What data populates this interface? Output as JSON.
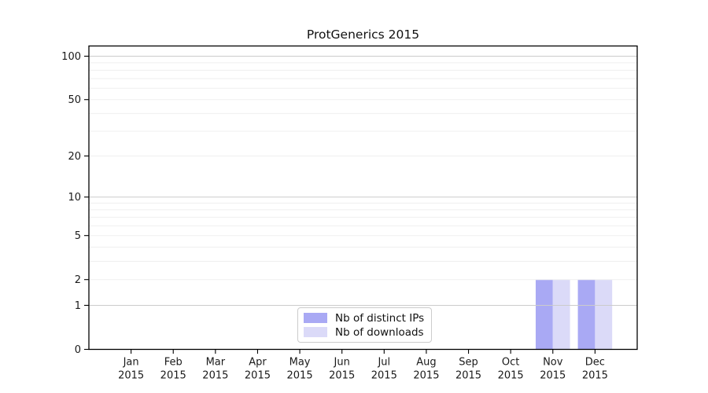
{
  "chart_data": {
    "type": "bar",
    "title": "ProtGenerics 2015",
    "categories": [
      "Jan",
      "Feb",
      "Mar",
      "Apr",
      "May",
      "Jun",
      "Jul",
      "Aug",
      "Sep",
      "Oct",
      "Nov",
      "Dec"
    ],
    "category_year": "2015",
    "series": [
      {
        "name": "Nb of distinct IPs",
        "color": "#a9a9f4",
        "values": [
          0,
          0,
          0,
          0,
          0,
          0,
          0,
          0,
          0,
          0,
          2,
          2
        ]
      },
      {
        "name": "Nb of downloads",
        "color": "#dbdaf8",
        "values": [
          0,
          0,
          0,
          0,
          0,
          0,
          0,
          0,
          0,
          0,
          2,
          2
        ]
      }
    ],
    "xlabel": "",
    "ylabel": "",
    "y_axis": {
      "scale": "log1p",
      "tick_labels": [
        100,
        50,
        20,
        10,
        5,
        2,
        1,
        0
      ],
      "major_gridlines": [
        1,
        10,
        100
      ],
      "minor_gridlines": [
        2,
        3,
        4,
        5,
        6,
        7,
        8,
        9,
        20,
        30,
        40,
        50,
        60,
        70,
        80,
        90
      ],
      "ylim": [
        0,
        117
      ]
    },
    "legend_position": "bottom-center",
    "grid": true,
    "colors": {
      "frame": "#000000",
      "major_grid": "#cbcbcb",
      "minor_grid": "#efefef",
      "tick_text": "#1a1a1a"
    }
  }
}
